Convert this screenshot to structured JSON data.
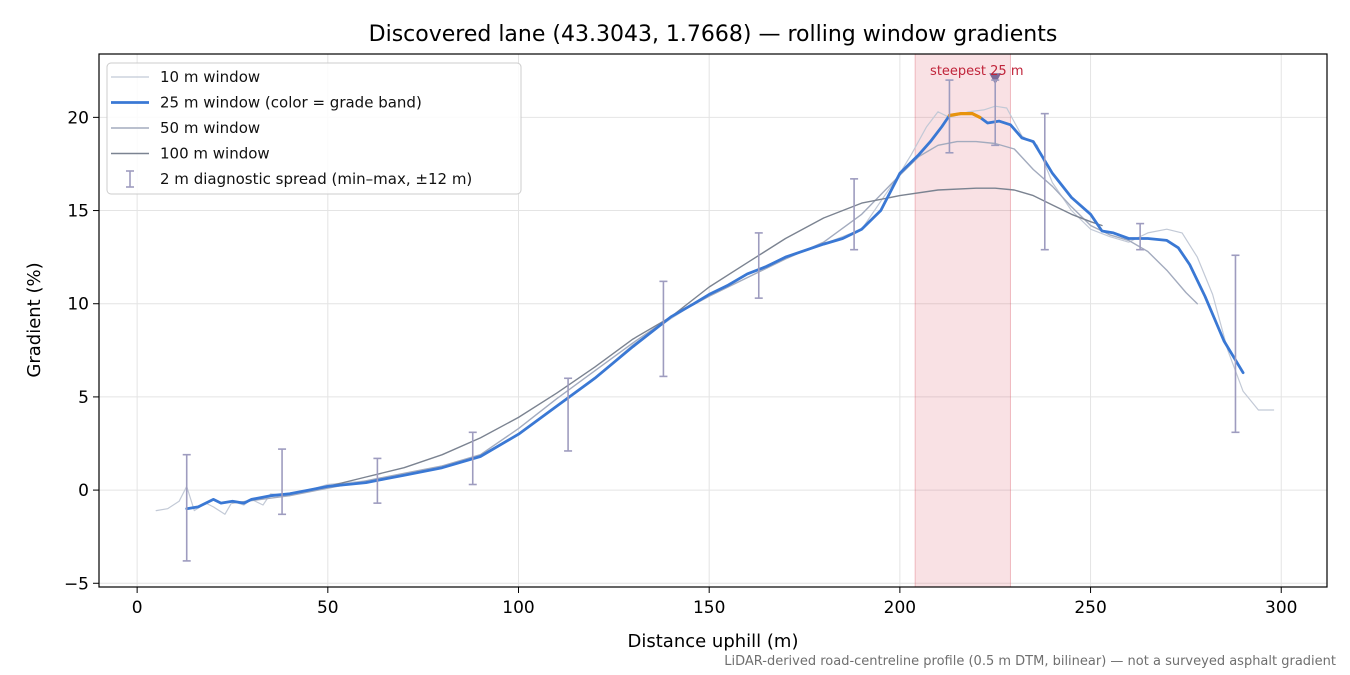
{
  "chart_data": {
    "type": "line",
    "title": "Discovered lane (43.3043, 1.7668) — rolling window gradients",
    "xlabel": "Distance uphill (m)",
    "ylabel": "Gradient (%)",
    "xlim": [
      -10,
      312
    ],
    "ylim": [
      -5.2,
      23.4
    ],
    "xticks": [
      0,
      50,
      100,
      150,
      200,
      250,
      300
    ],
    "yticks": [
      -5,
      0,
      5,
      10,
      15,
      20
    ],
    "ytick_labels": [
      "−5",
      "0",
      "5",
      "10",
      "15",
      "20"
    ],
    "grid": true,
    "legend_position": "top-left",
    "footnote": "LiDAR-derived road-centreline profile (0.5 m DTM, bilinear) — not a surveyed asphalt gradient",
    "steepest": {
      "label": "steepest 25 m",
      "band_x": [
        204,
        229
      ],
      "marker": [
        225,
        22.1
      ],
      "highlight_x": [
        213,
        221
      ]
    },
    "series": [
      {
        "name": "10 m window",
        "color": "#c2c9d6",
        "width": 1.2,
        "x": [
          5,
          8,
          11,
          13,
          15,
          18,
          20,
          23,
          25,
          28,
          30,
          33,
          35,
          40,
          45,
          50,
          60,
          70,
          80,
          90,
          100,
          110,
          120,
          130,
          140,
          150,
          160,
          170,
          180,
          190,
          200,
          203,
          207,
          210,
          213,
          218,
          222,
          225,
          228,
          232,
          236,
          240,
          245,
          250,
          255,
          260,
          265,
          270,
          274,
          278,
          282,
          286,
          290,
          294,
          298
        ],
        "y": [
          -1.1,
          -1.0,
          -0.6,
          0.2,
          -1.1,
          -0.7,
          -0.9,
          -1.3,
          -0.6,
          -0.8,
          -0.5,
          -0.8,
          -0.2,
          -0.3,
          0.0,
          0.3,
          0.5,
          0.8,
          1.3,
          1.8,
          3.0,
          4.5,
          6.0,
          7.8,
          9.2,
          10.5,
          11.6,
          12.5,
          13.2,
          14.0,
          17.0,
          18.0,
          19.5,
          20.3,
          20.0,
          20.3,
          20.4,
          20.6,
          20.5,
          19.0,
          18.5,
          16.5,
          15.0,
          14.0,
          13.6,
          13.3,
          13.8,
          14.0,
          13.8,
          12.5,
          10.5,
          7.5,
          5.3,
          4.3,
          4.3
        ]
      },
      {
        "name": "50 m window",
        "color": "#a3abbe",
        "width": 1.4,
        "x": [
          25,
          40,
          50,
          60,
          70,
          80,
          90,
          100,
          110,
          120,
          130,
          140,
          150,
          160,
          170,
          180,
          190,
          200,
          205,
          210,
          215,
          220,
          225,
          230,
          235,
          240,
          245,
          250,
          255,
          260,
          265,
          270,
          275,
          278
        ],
        "y": [
          -0.7,
          -0.3,
          0.1,
          0.5,
          0.9,
          1.3,
          1.9,
          3.3,
          4.9,
          6.4,
          7.9,
          9.3,
          10.4,
          11.4,
          12.4,
          13.3,
          14.8,
          16.9,
          17.9,
          18.5,
          18.7,
          18.7,
          18.6,
          18.3,
          17.2,
          16.3,
          15.2,
          14.2,
          13.7,
          13.4,
          12.8,
          11.8,
          10.6,
          10.0
        ]
      },
      {
        "name": "100 m window",
        "color": "#7b8391",
        "width": 1.4,
        "x": [
          50,
          60,
          70,
          80,
          90,
          100,
          110,
          120,
          130,
          140,
          150,
          160,
          170,
          180,
          190,
          200,
          210,
          220,
          225,
          230,
          235,
          240,
          245,
          250,
          253
        ],
        "y": [
          0.2,
          0.7,
          1.2,
          1.9,
          2.8,
          3.9,
          5.2,
          6.6,
          8.1,
          9.3,
          10.9,
          12.2,
          13.5,
          14.6,
          15.4,
          15.8,
          16.1,
          16.2,
          16.2,
          16.1,
          15.8,
          15.3,
          14.8,
          14.4,
          14.2
        ]
      },
      {
        "name": "25 m window (color = grade band)",
        "color": "#3a78d4",
        "width": 2.8,
        "x": [
          13,
          16,
          18,
          20,
          22,
          25,
          28,
          30,
          35,
          40,
          45,
          50,
          55,
          60,
          65,
          70,
          80,
          90,
          100,
          110,
          120,
          130,
          140,
          146,
          150,
          155,
          160,
          165,
          170,
          180,
          185,
          190,
          195,
          200,
          205,
          208,
          211,
          213,
          216,
          219,
          221,
          223,
          226,
          229,
          232,
          235,
          240,
          245,
          250,
          253,
          256,
          260,
          265,
          270,
          273,
          276,
          280,
          285,
          290
        ],
        "y": [
          -1.0,
          -0.9,
          -0.7,
          -0.5,
          -0.7,
          -0.6,
          -0.7,
          -0.5,
          -0.3,
          -0.2,
          0.0,
          0.2,
          0.3,
          0.4,
          0.6,
          0.8,
          1.2,
          1.8,
          3.0,
          4.5,
          6.0,
          7.7,
          9.3,
          10.0,
          10.5,
          11.0,
          11.6,
          12.0,
          12.5,
          13.2,
          13.5,
          14.0,
          15.0,
          17.0,
          18.0,
          18.7,
          19.5,
          20.1,
          20.2,
          20.2,
          20.0,
          19.7,
          19.8,
          19.6,
          18.9,
          18.7,
          17.0,
          15.7,
          14.8,
          13.9,
          13.8,
          13.5,
          13.5,
          13.4,
          13.0,
          12.1,
          10.4,
          8.0,
          6.3
        ],
        "highlight_color": "#e8930c"
      }
    ],
    "errorbars": {
      "name": "2 m diagnostic spread (min–max, ±12 m)",
      "color": "#9e9cbf",
      "x": [
        13,
        38,
        63,
        88,
        113,
        138,
        163,
        188,
        213,
        225,
        238,
        263,
        288
      ],
      "low": [
        -3.8,
        -1.3,
        -0.7,
        0.3,
        2.1,
        6.1,
        10.3,
        12.9,
        18.1,
        18.5,
        12.9,
        12.9,
        3.1
      ],
      "high": [
        1.9,
        2.2,
        1.7,
        3.1,
        6.0,
        11.2,
        13.8,
        16.7,
        22.0,
        22.0,
        20.2,
        14.3,
        12.6
      ]
    }
  }
}
